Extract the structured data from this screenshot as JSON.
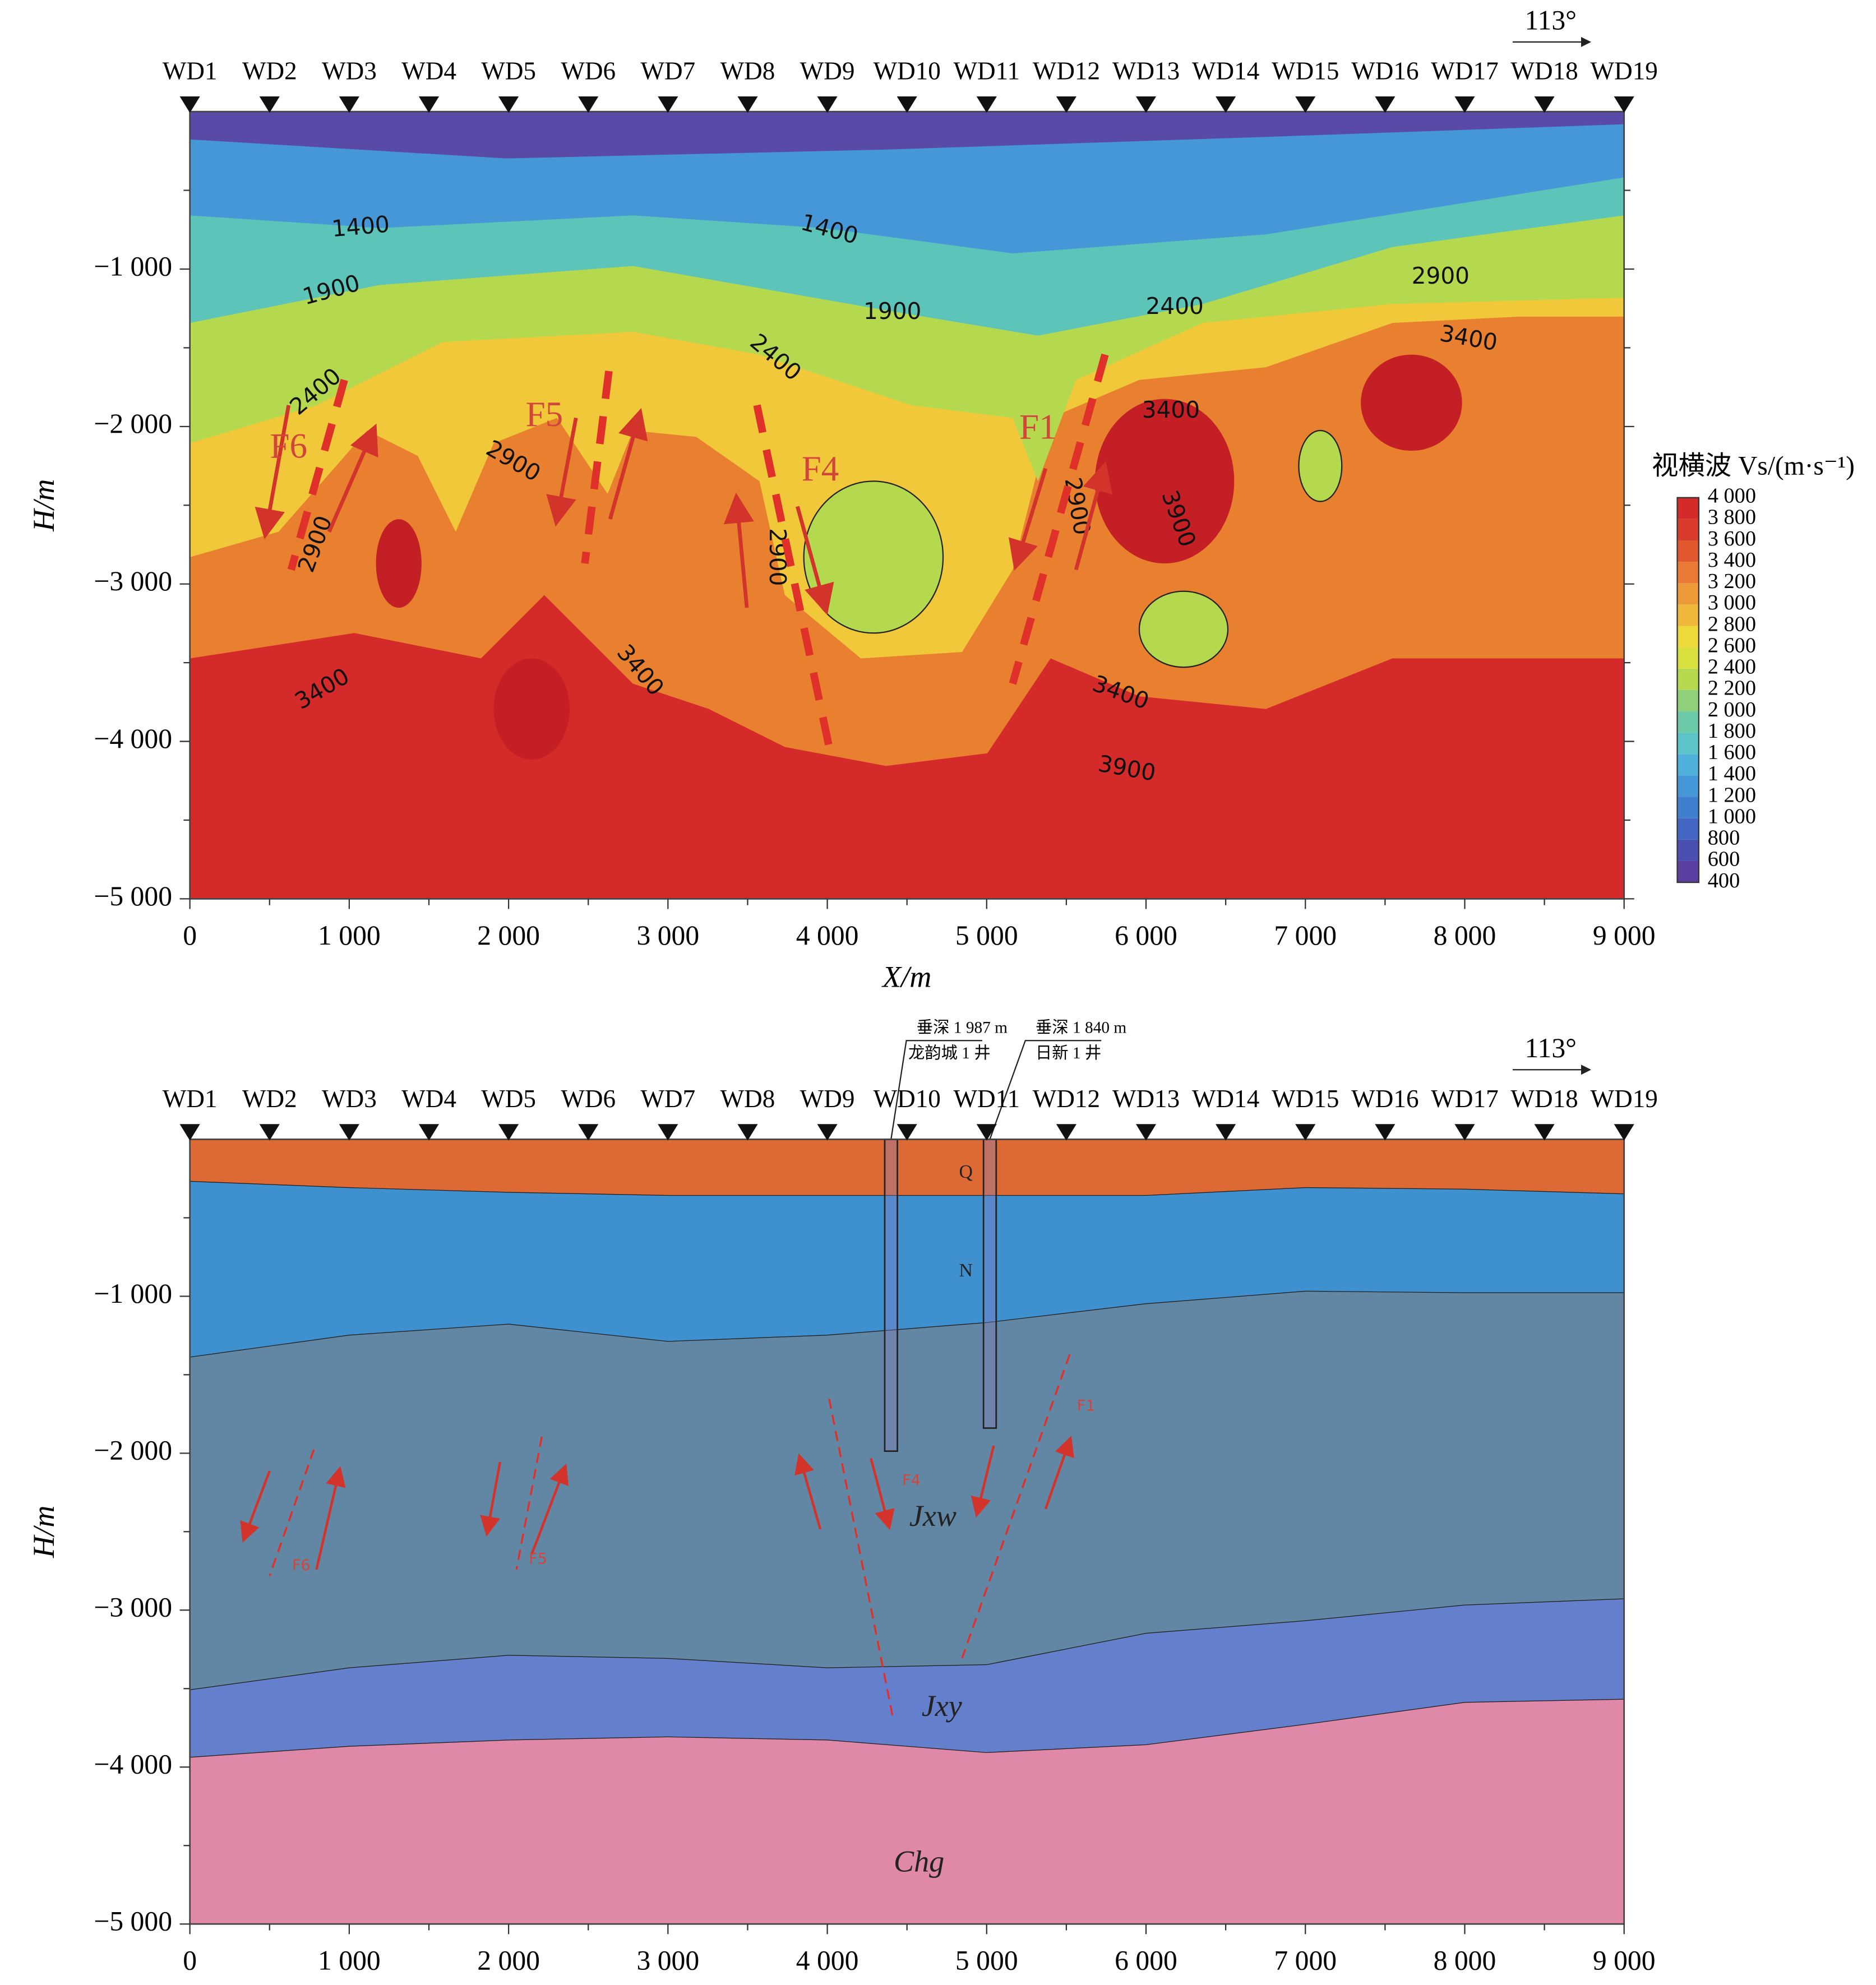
{
  "chart_data": [
    {
      "type": "contour",
      "azimuth": "113°",
      "stations": [
        "WD1",
        "WD2",
        "WD3",
        "WD4",
        "WD5",
        "WD6",
        "WD7",
        "WD8",
        "WD9",
        "WD10",
        "WD11",
        "WD12",
        "WD13",
        "WD14",
        "WD15",
        "WD16",
        "WD17",
        "WD18",
        "WD19"
      ],
      "station_x": [
        0,
        500,
        1000,
        1500,
        2000,
        2500,
        3000,
        3500,
        4000,
        4500,
        5000,
        5500,
        6000,
        6500,
        7000,
        7500,
        8000,
        8500,
        9000
      ],
      "xlabel": "X/m",
      "ylabel": "H/m",
      "xlim": [
        0,
        9000
      ],
      "ylim": [
        -5000,
        0
      ],
      "xticks": [
        0,
        {
          "value": 1000,
          "label": "1 000"
        },
        {
          "value": 2000,
          "label": "2 000"
        },
        {
          "value": 3000,
          "label": "3 000"
        },
        {
          "value": 4000,
          "label": "4 000"
        },
        {
          "value": 5000,
          "label": "5 000"
        },
        {
          "value": 6000,
          "label": "6 000"
        },
        {
          "value": 7000,
          "label": "7 000"
        },
        {
          "value": 8000,
          "label": "8 000"
        },
        {
          "value": 9000,
          "label": "9 000"
        }
      ],
      "yticks": [
        {
          "value": -1000,
          "label": "−1 000"
        },
        {
          "value": -2000,
          "label": "−2 000"
        },
        {
          "value": -3000,
          "label": "−3 000"
        },
        {
          "value": -4000,
          "label": "−4 000"
        },
        {
          "value": -5000,
          "label": "−5 000"
        }
      ],
      "colorbar": {
        "title": "视横波 Vs/(m·s⁻¹)",
        "lim": [
          400,
          4000
        ],
        "ticks": [
          {
            "value": 4000,
            "label": "4 000"
          },
          {
            "value": 3800,
            "label": "3 800"
          },
          {
            "value": 3600,
            "label": "3 600"
          },
          {
            "value": 3400,
            "label": "3 400"
          },
          {
            "value": 3200,
            "label": "3 200"
          },
          {
            "value": 3000,
            "label": "3 000"
          },
          {
            "value": 2800,
            "label": "2 800"
          },
          {
            "value": 2600,
            "label": "2 600"
          },
          {
            "value": 2400,
            "label": "2 400"
          },
          {
            "value": 2200,
            "label": "2 200"
          },
          {
            "value": 2000,
            "label": "2 000"
          },
          {
            "value": 1800,
            "label": "1 800"
          },
          {
            "value": 1600,
            "label": "1 600"
          },
          {
            "value": 1400,
            "label": "1 400"
          },
          {
            "value": 1200,
            "label": "1 200"
          },
          {
            "value": 1000,
            "label": "1 000"
          },
          800,
          600,
          400
        ],
        "colors": [
          "#5a3fa0",
          "#4a4fb0",
          "#4466c4",
          "#3f7fd0",
          "#4697d8",
          "#4fb0dc",
          "#5cc4c8",
          "#6ccaa8",
          "#8fd07a",
          "#b5d94e",
          "#d8e040",
          "#efd83a",
          "#f0b83a",
          "#ed9a38",
          "#e87a33",
          "#e2582e",
          "#da3c2c",
          "#d42a2a"
        ]
      },
      "contour_labels": [
        1400,
        1400,
        1900,
        1900,
        2400,
        2400,
        2400,
        2900,
        2900,
        2900,
        2900,
        2900,
        3400,
        3400,
        3400,
        3400,
        3400,
        3900,
        3900
      ],
      "faults": [
        "F6",
        "F5",
        "F4",
        "F1"
      ]
    },
    {
      "type": "section",
      "azimuth": "113°",
      "stations": [
        "WD1",
        "WD2",
        "WD3",
        "WD4",
        "WD5",
        "WD6",
        "WD7",
        "WD8",
        "WD9",
        "WD10",
        "WD11",
        "WD12",
        "WD13",
        "WD14",
        "WD15",
        "WD16",
        "WD17",
        "WD18",
        "WD19"
      ],
      "station_x": [
        0,
        500,
        1000,
        1500,
        2000,
        2500,
        3000,
        3500,
        4000,
        4500,
        5000,
        5500,
        6000,
        6500,
        7000,
        7500,
        8000,
        8500,
        9000
      ],
      "ylabel": "H/m",
      "xlim": [
        0,
        9000
      ],
      "ylim": [
        -5000,
        0
      ],
      "xticks": [
        0,
        {
          "value": 1000,
          "label": "1 000"
        },
        {
          "value": 2000,
          "label": "2 000"
        },
        {
          "value": 3000,
          "label": "3 000"
        },
        {
          "value": 4000,
          "label": "4 000"
        },
        {
          "value": 5000,
          "label": "5 000"
        },
        {
          "value": 6000,
          "label": "6 000"
        },
        {
          "value": 7000,
          "label": "7 000"
        },
        {
          "value": 8000,
          "label": "8 000"
        },
        {
          "value": 9000,
          "label": "9 000"
        }
      ],
      "yticks": [
        {
          "value": -1000,
          "label": "−1 000"
        },
        {
          "value": -2000,
          "label": "−2 000"
        },
        {
          "value": -3000,
          "label": "−3 000"
        },
        {
          "value": -4000,
          "label": "−4 000"
        },
        {
          "value": -5000,
          "label": "−5 000"
        }
      ],
      "x": [
        0,
        1000,
        2000,
        3000,
        4000,
        5000,
        6000,
        7000,
        8000,
        9000
      ],
      "layers": [
        {
          "name": "Q",
          "color": "#dd6a35",
          "bottom": [
            -270,
            -310,
            -340,
            -360,
            -360,
            -360,
            -360,
            -310,
            -320,
            -350
          ]
        },
        {
          "name": "N",
          "color": "#3f90cf",
          "bottom": [
            -1390,
            -1250,
            -1180,
            -1290,
            -1250,
            -1170,
            -1050,
            -970,
            -980,
            -980
          ]
        },
        {
          "name": "Jxw",
          "color": "#6287a4",
          "bottom": [
            -3510,
            -3370,
            -3290,
            -3310,
            -3370,
            -3350,
            -3150,
            -3070,
            -2970,
            -2930
          ]
        },
        {
          "name": "Jxy",
          "color": "#6480cc",
          "bottom": [
            -3940,
            -3870,
            -3830,
            -3810,
            -3830,
            -3910,
            -3860,
            -3730,
            -3590,
            -3570
          ]
        },
        {
          "name": "Chg",
          "color": "#e088a8"
        }
      ],
      "wells": [
        {
          "x": 4400,
          "depth": 1987,
          "depth_label": "垂深 1 987 m",
          "name": "龙韵城 1 井"
        },
        {
          "x": 5020,
          "depth": 1840,
          "depth_label": "垂深 1 840 m",
          "name": "日新 1 井"
        }
      ],
      "faults": [
        "F6",
        "F5",
        "F4",
        "F1"
      ]
    }
  ]
}
